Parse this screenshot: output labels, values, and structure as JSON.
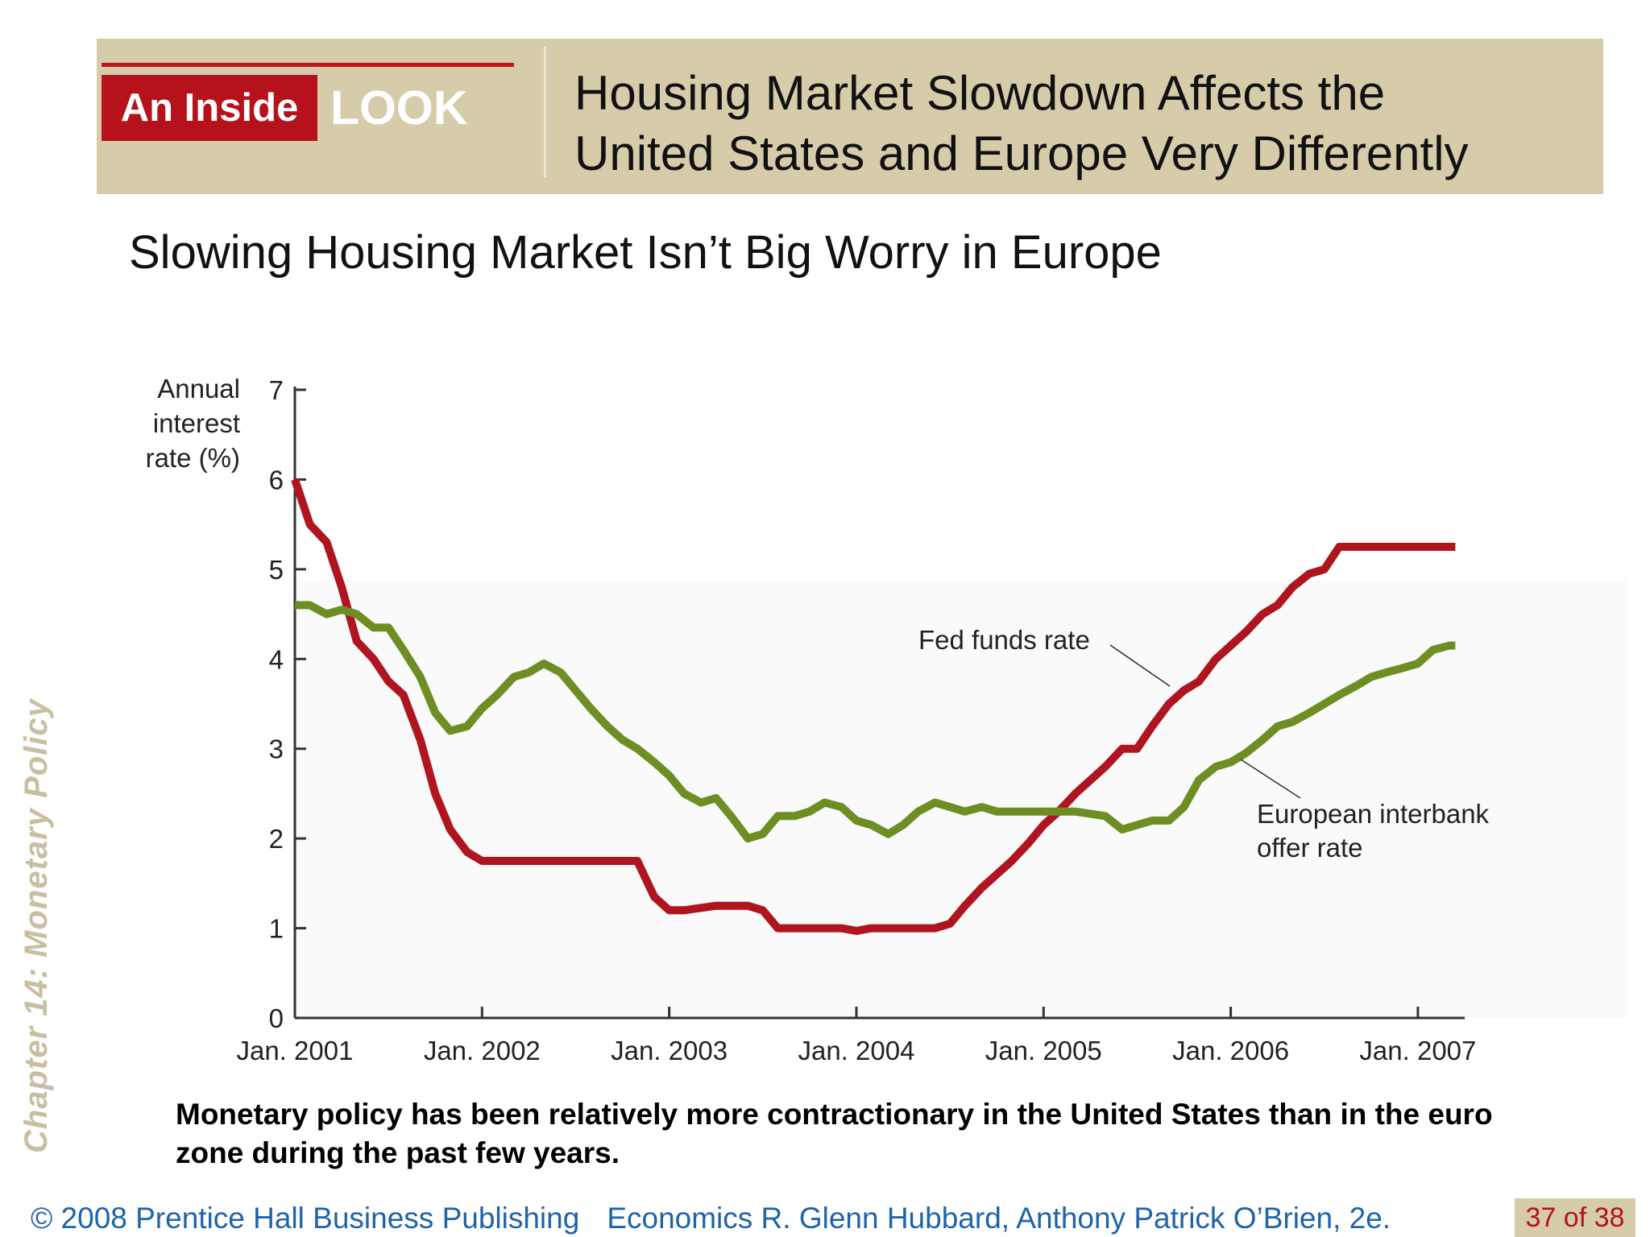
{
  "header": {
    "badge_inside": "An Inside",
    "badge_look": "LOOK",
    "title_line1": "Housing Market Slowdown Affects the",
    "title_line2": "United States and Europe Very Differently"
  },
  "subtitle": "Slowing Housing Market Isn’t Big Worry in Europe",
  "side_label": "Chapter 14:  Monetary Policy",
  "chart_data": {
    "type": "line",
    "ylabel": [
      "Annual",
      "interest",
      "rate (%)"
    ],
    "xlabel": "",
    "ylim": [
      0,
      7
    ],
    "xlim": [
      2001.0,
      2007.25
    ],
    "yticks": [
      0,
      1,
      2,
      3,
      4,
      5,
      6,
      7
    ],
    "xticks": [
      {
        "value": 2001,
        "label": "Jan. 2001"
      },
      {
        "value": 2002,
        "label": "Jan. 2002"
      },
      {
        "value": 2003,
        "label": "Jan. 2003"
      },
      {
        "value": 2004,
        "label": "Jan. 2004"
      },
      {
        "value": 2005,
        "label": "Jan. 2005"
      },
      {
        "value": 2006,
        "label": "Jan. 2006"
      },
      {
        "value": 2007,
        "label": "Jan. 2007"
      }
    ],
    "grid": false,
    "series": [
      {
        "name": "Fed funds rate",
        "color": "#b0141e",
        "x": [
          2001.0,
          2001.08,
          2001.17,
          2001.25,
          2001.33,
          2001.42,
          2001.5,
          2001.58,
          2001.67,
          2001.75,
          2001.83,
          2001.92,
          2002.0,
          2002.5,
          2002.83,
          2002.92,
          2003.0,
          2003.08,
          2003.25,
          2003.42,
          2003.5,
          2003.58,
          2003.67,
          2003.75,
          2003.92,
          2004.0,
          2004.08,
          2004.25,
          2004.42,
          2004.5,
          2004.58,
          2004.67,
          2004.75,
          2004.83,
          2004.92,
          2005.0,
          2005.08,
          2005.17,
          2005.25,
          2005.33,
          2005.42,
          2005.5,
          2005.58,
          2005.67,
          2005.75,
          2005.83,
          2005.92,
          2006.0,
          2006.08,
          2006.17,
          2006.25,
          2006.33,
          2006.42,
          2006.5,
          2006.58,
          2007.0,
          2007.2
        ],
        "values": [
          6.0,
          5.5,
          5.3,
          4.8,
          4.2,
          4.0,
          3.75,
          3.6,
          3.1,
          2.5,
          2.1,
          1.85,
          1.75,
          1.75,
          1.75,
          1.35,
          1.2,
          1.2,
          1.25,
          1.25,
          1.2,
          1.0,
          1.0,
          1.0,
          1.0,
          0.97,
          1.0,
          1.0,
          1.0,
          1.05,
          1.25,
          1.45,
          1.6,
          1.75,
          1.95,
          2.15,
          2.3,
          2.5,
          2.65,
          2.8,
          3.0,
          3.0,
          3.25,
          3.5,
          3.65,
          3.75,
          4.0,
          4.15,
          4.3,
          4.5,
          4.6,
          4.8,
          4.95,
          5.0,
          5.25,
          5.25,
          5.25
        ]
      },
      {
        "name": "European interbank offer rate",
        "color": "#6e8e23",
        "x": [
          2001.0,
          2001.08,
          2001.17,
          2001.25,
          2001.33,
          2001.42,
          2001.5,
          2001.58,
          2001.67,
          2001.75,
          2001.83,
          2001.92,
          2002.0,
          2002.08,
          2002.17,
          2002.25,
          2002.33,
          2002.42,
          2002.5,
          2002.58,
          2002.67,
          2002.75,
          2002.83,
          2002.92,
          2003.0,
          2003.08,
          2003.17,
          2003.25,
          2003.33,
          2003.42,
          2003.5,
          2003.58,
          2003.67,
          2003.75,
          2003.83,
          2003.92,
          2004.0,
          2004.08,
          2004.17,
          2004.25,
          2004.33,
          2004.42,
          2004.5,
          2004.58,
          2004.67,
          2004.75,
          2004.83,
          2004.92,
          2005.0,
          2005.17,
          2005.33,
          2005.42,
          2005.5,
          2005.58,
          2005.67,
          2005.75,
          2005.83,
          2005.92,
          2006.0,
          2006.08,
          2006.17,
          2006.25,
          2006.33,
          2006.42,
          2006.5,
          2006.58,
          2006.67,
          2006.75,
          2006.83,
          2006.92,
          2007.0,
          2007.08,
          2007.17,
          2007.2
        ],
        "values": [
          4.6,
          4.6,
          4.5,
          4.55,
          4.5,
          4.35,
          4.35,
          4.1,
          3.8,
          3.4,
          3.2,
          3.25,
          3.45,
          3.6,
          3.8,
          3.85,
          3.95,
          3.85,
          3.65,
          3.45,
          3.25,
          3.1,
          3.0,
          2.85,
          2.7,
          2.5,
          2.4,
          2.45,
          2.25,
          2.0,
          2.05,
          2.25,
          2.25,
          2.3,
          2.4,
          2.35,
          2.2,
          2.15,
          2.05,
          2.15,
          2.3,
          2.4,
          2.35,
          2.3,
          2.35,
          2.3,
          2.3,
          2.3,
          2.3,
          2.3,
          2.25,
          2.1,
          2.15,
          2.2,
          2.2,
          2.35,
          2.65,
          2.8,
          2.85,
          2.95,
          3.1,
          3.25,
          3.3,
          3.4,
          3.5,
          3.6,
          3.7,
          3.8,
          3.85,
          3.9,
          3.95,
          4.1,
          4.15,
          4.15
        ]
      }
    ],
    "annotations": [
      {
        "series": "Fed funds rate",
        "label": [
          "Fed funds rate"
        ]
      },
      {
        "series": "European interbank offer rate",
        "label": [
          "European interbank",
          "offer rate"
        ]
      }
    ]
  },
  "caption": "Monetary policy has been relatively more contractionary in the United States than in the euro zone during the past few years.",
  "footer": {
    "copyright": "© 2008 Prentice Hall Business Publishing",
    "book": "Economics  R. Glenn Hubbard, Anthony Patrick O’Brien, 2e.",
    "page": "37 of 38"
  }
}
